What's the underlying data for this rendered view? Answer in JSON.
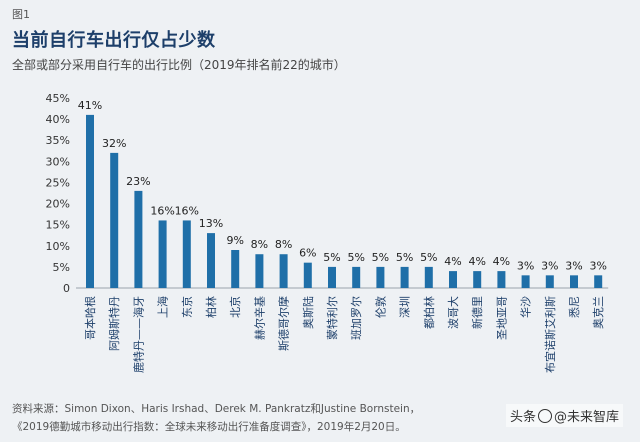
{
  "figure_label": "图1",
  "chart_data": {
    "type": "bar",
    "title": "当前自行车出行仅占少数",
    "subtitle": "全部或部分采用自行车的出行比例（2019年排名前22的城市）",
    "categories": [
      "哥本哈根",
      "阿姆斯特丹",
      "鹿特丹——海牙",
      "上海",
      "东京",
      "柏林",
      "北京",
      "赫尔辛基",
      "斯德哥尔摩",
      "奥斯陆",
      "蒙特利尔",
      "班加罗尔",
      "伦敦",
      "深圳",
      "都柏林",
      "波哥大",
      "新德里",
      "圣地亚哥",
      "华沙",
      "布宜诺斯艾利斯",
      "悉尼",
      "奥克兰"
    ],
    "values": [
      41,
      32,
      23,
      16,
      16,
      13,
      9,
      8,
      8,
      6,
      5,
      5,
      5,
      5,
      5,
      4,
      4,
      4,
      3,
      3,
      3,
      3
    ],
    "data_labels": [
      "41%",
      "32%",
      "23%",
      "16%",
      "16%",
      "13%",
      "9%",
      "8%",
      "8%",
      "6%",
      "5%",
      "5%",
      "5%",
      "5%",
      "5%",
      "4%",
      "4%",
      "4%",
      "3%",
      "3%",
      "3%",
      "3%"
    ],
    "yticks": [
      0,
      5,
      10,
      15,
      20,
      25,
      30,
      35,
      40,
      45
    ],
    "ytick_labels": [
      "0",
      "5%",
      "10%",
      "15%",
      "20%",
      "25%",
      "30%",
      "35%",
      "40%",
      "45%"
    ],
    "ylim": [
      0,
      45
    ],
    "bar_color": "#1f6fa8",
    "grid": false
  },
  "source_lines": [
    "资料来源：Simon Dixon、Haris Irshad、Derek M. Pankratz和Justine Bornstein，",
    "《2019德勤城市移动出行指数：全球未来移动出行准备度调查》，2019年2月20日。"
  ],
  "watermark": {
    "prefix": "头条",
    "handle": "@未来智库"
  }
}
